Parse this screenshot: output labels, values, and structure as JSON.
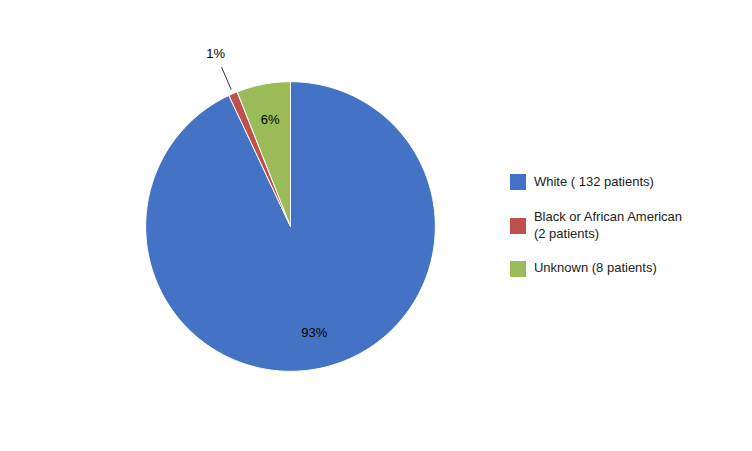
{
  "chart_data": {
    "type": "pie",
    "categories": [
      "White ( 132 patients)",
      "Black or African American\n(2 patients)",
      "Unknown (8 patients)"
    ],
    "values": [
      93,
      1,
      6
    ],
    "value_labels": [
      "93%",
      "1%",
      "6%"
    ],
    "colors": [
      "#4472C4",
      "#C0504D",
      "#9BBB59"
    ],
    "data_labels": true,
    "legend": "right"
  }
}
